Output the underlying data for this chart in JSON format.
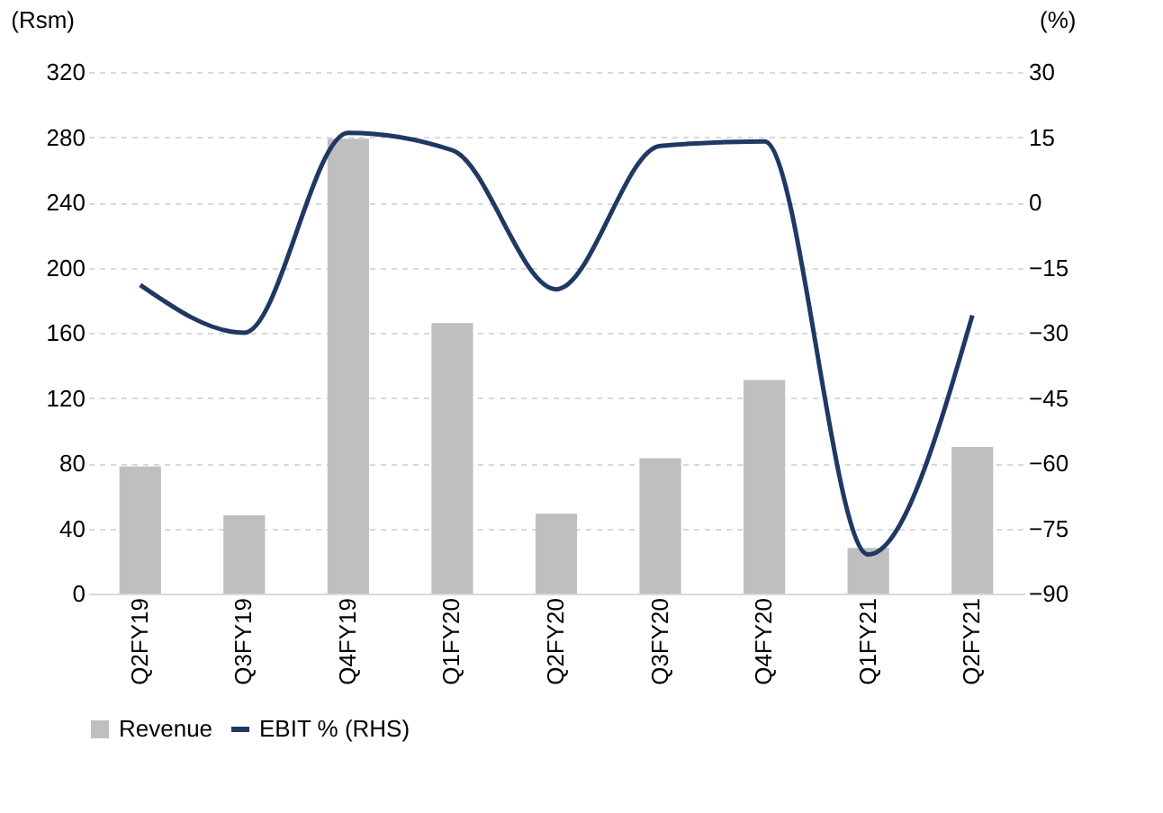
{
  "chart_data": {
    "type": "bar",
    "categories": [
      "Q2FY19",
      "Q3FY19",
      "Q4FY19",
      "Q1FY20",
      "Q2FY20",
      "Q3FY20",
      "Q4FY20",
      "Q1FY21",
      "Q2FY21"
    ],
    "series": [
      {
        "name": "Revenue",
        "color": "#bfbfbf",
        "values": [
          78,
          48,
          279,
          166,
          49,
          83,
          131,
          28,
          90
        ]
      },
      {
        "name": "EBIT % (RHS)",
        "type": "line",
        "axis": "y2",
        "color": "#203864",
        "values": [
          -19,
          -30,
          16,
          12,
          -20,
          13,
          14,
          -81,
          -26
        ]
      }
    ],
    "ylabel": "(Rsm)",
    "y2label": "(%)",
    "ylim": [
      0,
      320
    ],
    "yticks": [
      0,
      40,
      80,
      120,
      160,
      200,
      240,
      280,
      320
    ],
    "y2lim": [
      -90,
      30
    ],
    "y2ticks": [
      -90,
      -75,
      -60,
      -45,
      -30,
      -15,
      0,
      15,
      30
    ],
    "grid": "y",
    "legend": "bottom",
    "marker": "none",
    "line_style": "solid"
  }
}
